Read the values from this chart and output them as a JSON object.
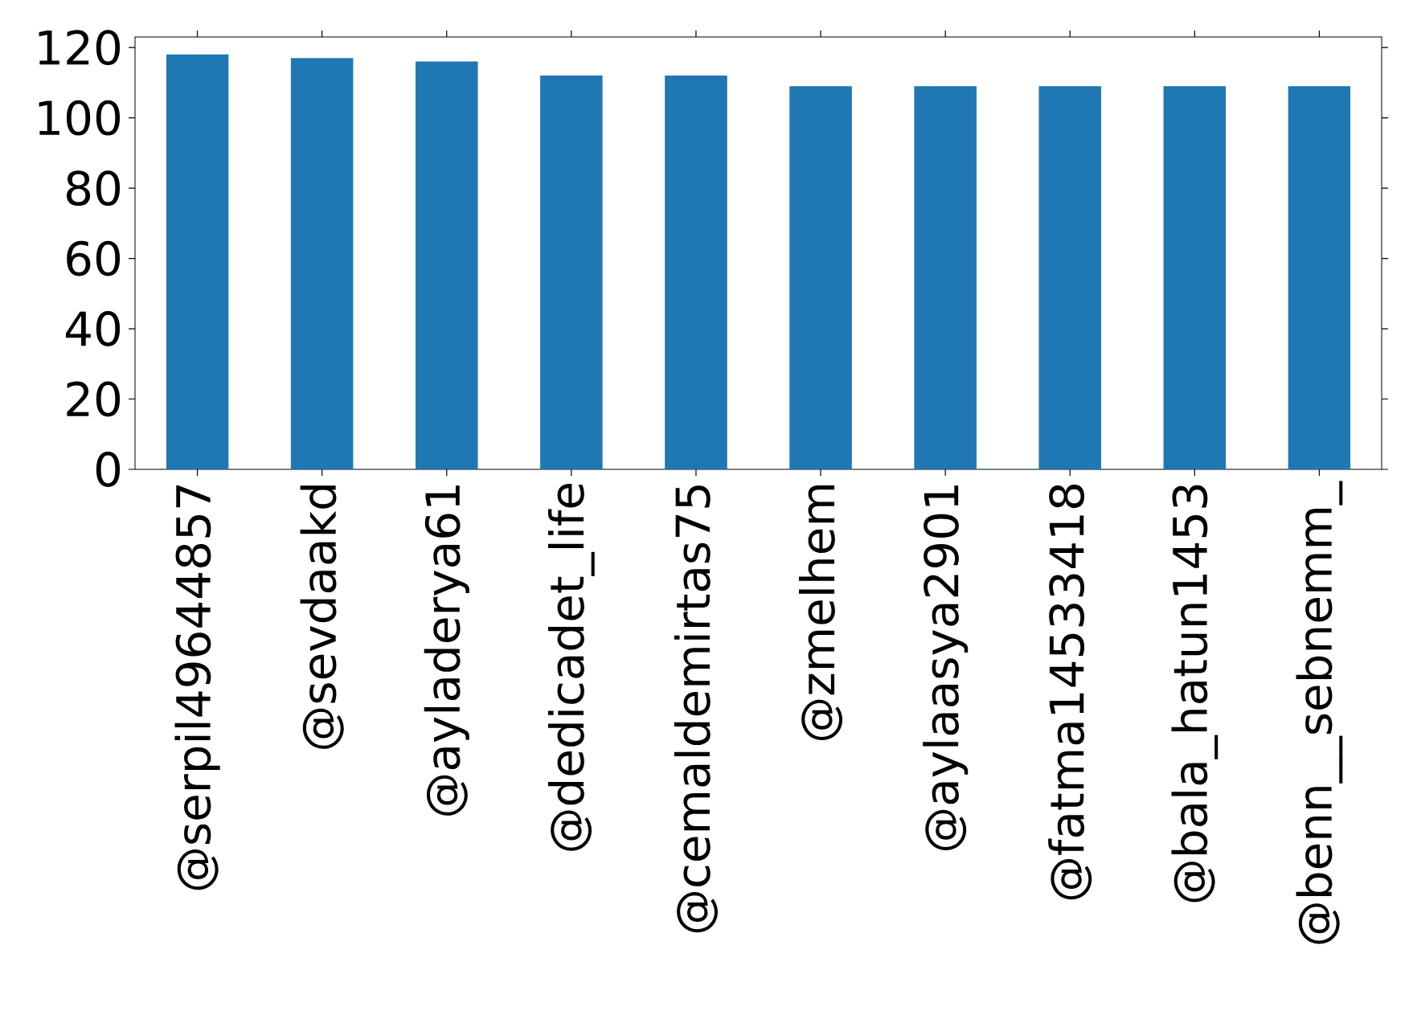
{
  "chart_data": {
    "type": "bar",
    "categories": [
      "@serpil49644857",
      "@sevdaakd",
      "@ayladerya61",
      "@dedicadet_life",
      "@cemaldemirtas75",
      "@zmelhem",
      "@aylaasya2901",
      "@fatma14533418",
      "@bala_hatun1453",
      "@benn__sebnemm_"
    ],
    "values": [
      118,
      117,
      116,
      112,
      112,
      109,
      109,
      109,
      109,
      109
    ],
    "color": "#1f77b4",
    "ylim": [
      0,
      123
    ],
    "yticks": [
      0,
      20,
      40,
      60,
      80,
      100,
      120
    ]
  }
}
